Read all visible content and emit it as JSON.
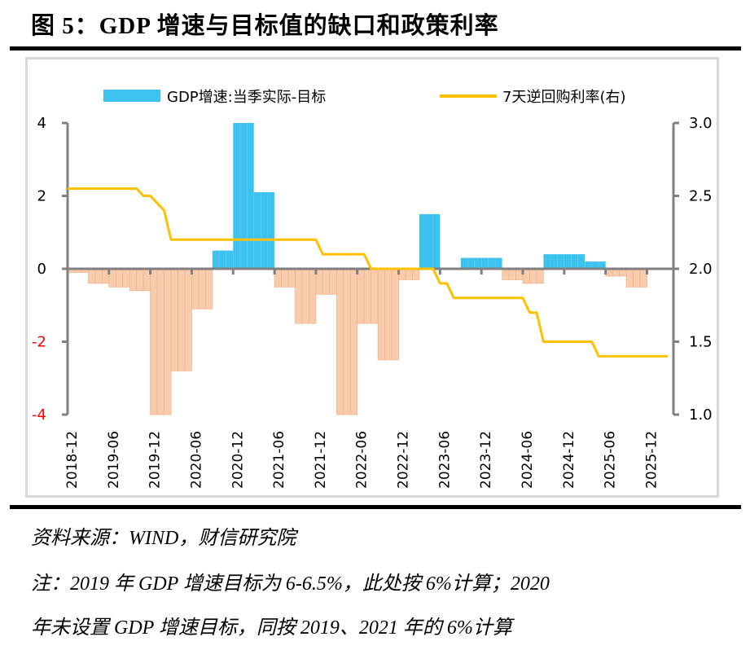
{
  "title": "图 5：GDP 增速与目标值的缺口和政策利率",
  "source": "资料来源：WIND，财信研究院",
  "note_line1": "注：2019 年 GDP 增速目标为 6-6.5%，此处按 6%计算；2020",
  "note_line2": "年未设置 GDP 增速目标，同按 2019、2021 年的 6%计算",
  "colors": {
    "positive_bar": "#3DC2F0",
    "negative_bar": "#F8CBAD",
    "negative_bar_edge": "#F4B183",
    "line": "#FFC000",
    "axis": "#808080",
    "negative_tick_label": "#FF0000"
  },
  "chart_data": {
    "type": "bar+line",
    "legend_placement": "top",
    "grid": false,
    "series": [
      {
        "name": "GDP增速:当季实际-目标",
        "type": "bar",
        "axis": "left",
        "quarters": [
          "2019-03",
          "2019-06",
          "2019-09",
          "2019-12",
          "2020-03",
          "2020-06",
          "2020-09",
          "2020-12",
          "2021-03",
          "2021-06",
          "2021-09",
          "2021-12",
          "2022-03",
          "2022-06",
          "2022-09",
          "2022-12",
          "2023-03",
          "2023-06",
          "2023-09",
          "2023-12",
          "2024-03",
          "2024-06",
          "2024-09",
          "2024-12",
          "2025-03",
          "2025-06",
          "2025-09",
          "2025-12"
        ],
        "values": [
          -0.1,
          -0.4,
          -0.5,
          -0.6,
          -4,
          -2.8,
          -1.1,
          0.5,
          4,
          2.1,
          -0.5,
          -1.5,
          -0.7,
          -4,
          -1.5,
          -2.5,
          -0.3,
          1.5,
          0,
          0.3,
          0.3,
          -0.3,
          -0.4,
          0.4,
          0.4,
          0.2,
          -0.2,
          -0.5
        ]
      },
      {
        "name": "7天逆回购利率(右)",
        "type": "line",
        "axis": "right",
        "points": [
          [
            "2018-12",
            2.55
          ],
          [
            "2019-10",
            2.55
          ],
          [
            "2019-11",
            2.5
          ],
          [
            "2019-12",
            2.5
          ],
          [
            "2020-02",
            2.4
          ],
          [
            "2020-03",
            2.2
          ],
          [
            "2021-12",
            2.2
          ],
          [
            "2022-01",
            2.1
          ],
          [
            "2022-07",
            2.1
          ],
          [
            "2022-08",
            2.0
          ],
          [
            "2023-05",
            2.0
          ],
          [
            "2023-06",
            1.9
          ],
          [
            "2023-07",
            1.9
          ],
          [
            "2023-08",
            1.8
          ],
          [
            "2024-06",
            1.8
          ],
          [
            "2024-07",
            1.7
          ],
          [
            "2024-08",
            1.7
          ],
          [
            "2024-09",
            1.5
          ],
          [
            "2025-04",
            1.5
          ],
          [
            "2025-05",
            1.4
          ],
          [
            "2026-03",
            1.4
          ]
        ]
      }
    ],
    "x_tick_labels": [
      "2018-12",
      "2019-06",
      "2019-12",
      "2020-06",
      "2020-12",
      "2021-06",
      "2021-12",
      "2022-06",
      "2022-12",
      "2023-06",
      "2023-12",
      "2024-06",
      "2024-12",
      "2025-06",
      "2025-12"
    ],
    "left_axis": {
      "ylim": [
        -4,
        4
      ],
      "ticks": [
        "4",
        "2",
        "0",
        "-2",
        "-4"
      ]
    },
    "right_axis": {
      "ylim": [
        1.0,
        3.0
      ],
      "ticks": [
        "3.0",
        "2.5",
        "2.0",
        "1.5",
        "1.0"
      ]
    }
  }
}
